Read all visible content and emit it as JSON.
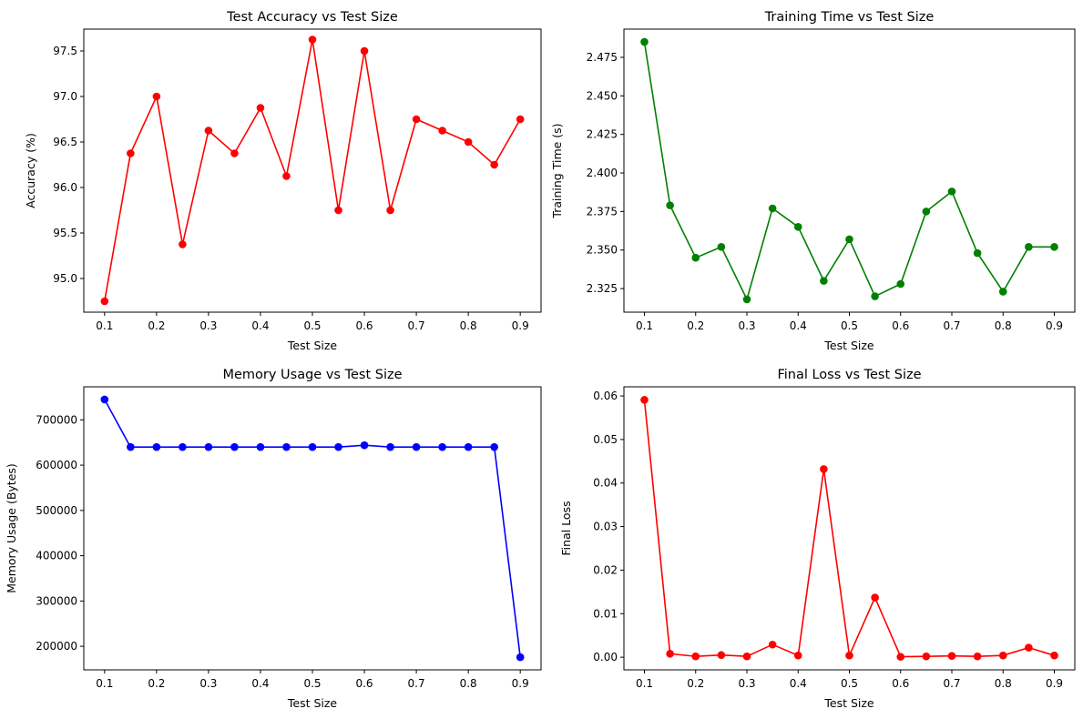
{
  "chart_data": [
    {
      "type": "line",
      "title": "Test Accuracy vs Test Size",
      "xlabel": "Test Size",
      "ylabel": "Accuracy (%)",
      "color": "#ff0000",
      "xlim": [
        0.06,
        0.94
      ],
      "ylim": [
        94.63,
        97.74
      ],
      "xticks": [
        0.1,
        0.2,
        0.3,
        0.4,
        0.5,
        0.6,
        0.7,
        0.8,
        0.9
      ],
      "xtick_labels": [
        "0.1",
        "0.2",
        "0.3",
        "0.4",
        "0.5",
        "0.6",
        "0.7",
        "0.8",
        "0.9"
      ],
      "yticks": [
        95.0,
        95.5,
        96.0,
        96.5,
        97.0,
        97.5
      ],
      "ytick_labels": [
        "95.0",
        "95.5",
        "96.0",
        "96.5",
        "97.0",
        "97.5"
      ],
      "x": [
        0.1,
        0.15,
        0.2,
        0.25,
        0.3,
        0.35,
        0.4,
        0.45,
        0.5,
        0.55,
        0.6,
        0.65,
        0.7,
        0.75,
        0.8,
        0.85,
        0.9
      ],
      "y": [
        94.75,
        96.375,
        97.0,
        95.375,
        96.625,
        96.375,
        96.875,
        96.125,
        97.625,
        95.75,
        97.5,
        95.75,
        96.75,
        96.625,
        96.5,
        96.25,
        96.75
      ]
    },
    {
      "type": "line",
      "title": "Training Time vs Test Size",
      "xlabel": "Test Size",
      "ylabel": "Training Time (s)",
      "color": "#008000",
      "xlim": [
        0.06,
        0.94
      ],
      "ylim": [
        2.3097,
        2.4933
      ],
      "xticks": [
        0.1,
        0.2,
        0.3,
        0.4,
        0.5,
        0.6,
        0.7,
        0.8,
        0.9
      ],
      "xtick_labels": [
        "0.1",
        "0.2",
        "0.3",
        "0.4",
        "0.5",
        "0.6",
        "0.7",
        "0.8",
        "0.9"
      ],
      "yticks": [
        2.325,
        2.35,
        2.375,
        2.4,
        2.425,
        2.45,
        2.475
      ],
      "ytick_labels": [
        "2.325",
        "2.350",
        "2.375",
        "2.400",
        "2.425",
        "2.450",
        "2.475"
      ],
      "x": [
        0.1,
        0.15,
        0.2,
        0.25,
        0.3,
        0.35,
        0.4,
        0.45,
        0.5,
        0.55,
        0.6,
        0.65,
        0.7,
        0.75,
        0.8,
        0.85,
        0.9
      ],
      "y": [
        2.485,
        2.379,
        2.345,
        2.352,
        2.318,
        2.377,
        2.365,
        2.33,
        2.357,
        2.32,
        2.328,
        2.375,
        2.388,
        2.348,
        2.323,
        2.352,
        2.352
      ]
    },
    {
      "type": "line",
      "title": "Memory Usage vs Test Size",
      "xlabel": "Test Size",
      "ylabel": "Memory Usage (Bytes)",
      "color": "#0000ff",
      "xlim": [
        0.06,
        0.94
      ],
      "ylim": [
        148000,
        773000
      ],
      "xticks": [
        0.1,
        0.2,
        0.3,
        0.4,
        0.5,
        0.6,
        0.7,
        0.8,
        0.9
      ],
      "xtick_labels": [
        "0.1",
        "0.2",
        "0.3",
        "0.4",
        "0.5",
        "0.6",
        "0.7",
        "0.8",
        "0.9"
      ],
      "yticks": [
        200000,
        300000,
        400000,
        500000,
        600000,
        700000
      ],
      "ytick_labels": [
        "200000",
        "300000",
        "400000",
        "500000",
        "600000",
        "700000"
      ],
      "x": [
        0.1,
        0.15,
        0.2,
        0.25,
        0.3,
        0.35,
        0.4,
        0.45,
        0.5,
        0.55,
        0.6,
        0.65,
        0.7,
        0.75,
        0.8,
        0.85,
        0.9
      ],
      "y": [
        745000,
        640000,
        640000,
        640000,
        640000,
        640000,
        640000,
        640000,
        640000,
        640000,
        644000,
        640000,
        640000,
        640000,
        640000,
        640000,
        176000
      ]
    },
    {
      "type": "line",
      "title": "Final Loss vs Test Size",
      "xlabel": "Test Size",
      "ylabel": "Final Loss",
      "color": "#ff0000",
      "xlim": [
        0.06,
        0.94
      ],
      "ylim": [
        -0.0029,
        0.0621
      ],
      "xticks": [
        0.1,
        0.2,
        0.3,
        0.4,
        0.5,
        0.6,
        0.7,
        0.8,
        0.9
      ],
      "xtick_labels": [
        "0.1",
        "0.2",
        "0.3",
        "0.4",
        "0.5",
        "0.6",
        "0.7",
        "0.8",
        "0.9"
      ],
      "yticks": [
        0.0,
        0.01,
        0.02,
        0.03,
        0.04,
        0.05,
        0.06
      ],
      "ytick_labels": [
        "0.00",
        "0.01",
        "0.02",
        "0.03",
        "0.04",
        "0.05",
        "0.06"
      ],
      "x": [
        0.1,
        0.15,
        0.2,
        0.25,
        0.3,
        0.35,
        0.4,
        0.45,
        0.5,
        0.55,
        0.6,
        0.65,
        0.7,
        0.75,
        0.8,
        0.85,
        0.9
      ],
      "y": [
        0.0591,
        0.0008,
        0.0002,
        0.0005,
        0.0002,
        0.0029,
        0.0004,
        0.0432,
        0.0004,
        0.0137,
        0.0001,
        0.0002,
        0.0003,
        0.0002,
        0.0004,
        0.0022,
        0.0004
      ]
    }
  ]
}
